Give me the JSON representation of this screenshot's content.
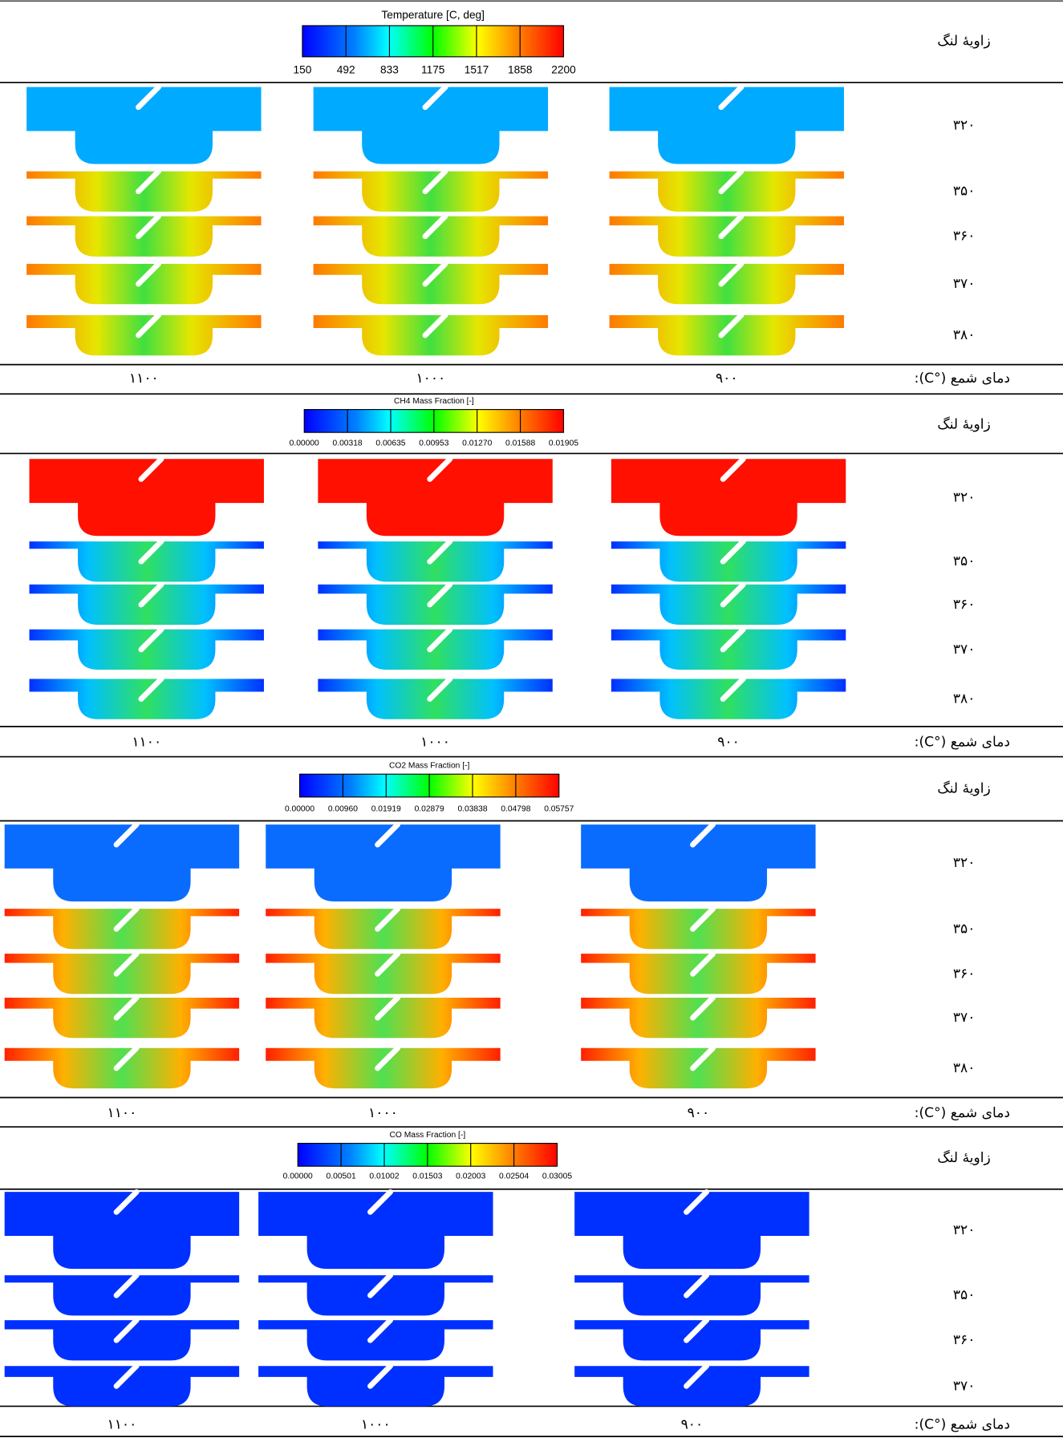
{
  "sections": [
    {
      "legend": {
        "title": "Temperature [C, deg]",
        "ticks": [
          "150",
          "492",
          "833",
          "1175",
          "1517",
          "1858",
          "2200"
        ]
      },
      "angle_header": "زاویهٔ لنگ",
      "rows": [
        "۳۲۰",
        "۳۵۰",
        "۳۶۰",
        "۳۷۰",
        "۳۸۰"
      ],
      "footer": {
        "label": "دمای شمع (°C):",
        "columns": [
          "۱۱۰۰",
          "۱۰۰۰",
          "۹۰۰"
        ]
      }
    },
    {
      "legend": {
        "title": "CH4 Mass Fraction [-]",
        "ticks": [
          "0.00000",
          "0.00318",
          "0.00635",
          "0.00953",
          "0.01270",
          "0.01588",
          "0.01905"
        ]
      },
      "angle_header": "زاویهٔ لنگ",
      "rows": [
        "۳۲۰",
        "۳۵۰",
        "۳۶۰",
        "۳۷۰",
        "۳۸۰"
      ],
      "footer": {
        "label": "دمای شمع (°C):",
        "columns": [
          "۱۱۰۰",
          "۱۰۰۰",
          "۹۰۰"
        ]
      }
    },
    {
      "legend": {
        "title": "CO2 Mass Fraction [-]",
        "ticks": [
          "0.00000",
          "0.00960",
          "0.01919",
          "0.02879",
          "0.03838",
          "0.04798",
          "0.05757"
        ]
      },
      "angle_header": "زاویهٔ لنگ",
      "rows": [
        "۳۲۰",
        "۳۵۰",
        "۳۶۰",
        "۳۷۰",
        "۳۸۰"
      ],
      "footer": {
        "label": "دمای شمع (°C):",
        "columns": [
          "۱۱۰۰",
          "۱۰۰۰",
          "۹۰۰"
        ]
      }
    },
    {
      "legend": {
        "title": "CO Mass Fraction [-]",
        "ticks": [
          "0.00000",
          "0.00501",
          "0.01002",
          "0.01503",
          "0.02003",
          "0.02504",
          "0.03005"
        ]
      },
      "angle_header": "زاویهٔ لنگ",
      "rows": [
        "۳۲۰",
        "۳۵۰",
        "۳۶۰",
        "۳۷۰"
      ],
      "footer": {
        "label": "دمای شمع (°C):",
        "columns": [
          "۱۱۰۰",
          "۱۰۰۰",
          "۹۰۰"
        ]
      }
    }
  ]
}
